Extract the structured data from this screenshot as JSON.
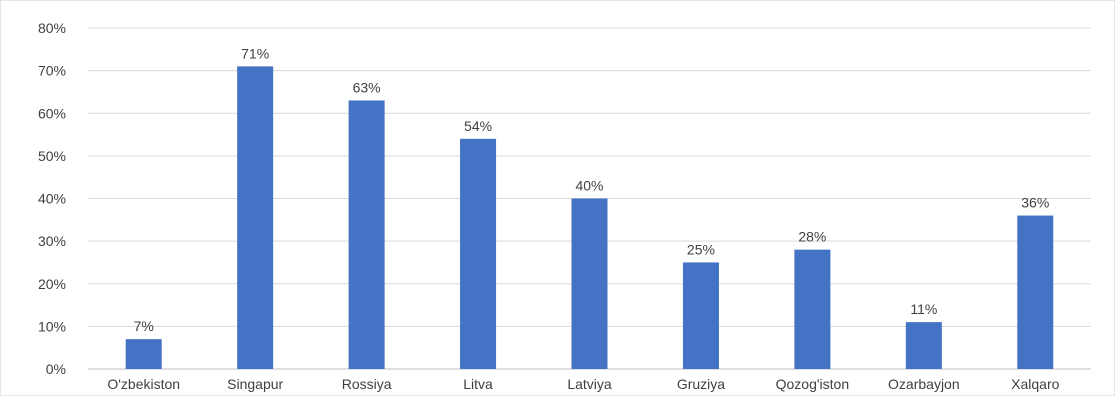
{
  "chart_data": {
    "type": "bar",
    "categories": [
      "O'zbekiston",
      "Singapur",
      "Rossiya",
      "Litva",
      "Latviya",
      "Gruziya",
      "Qozog'iston",
      "Ozarbayjon",
      "Xalqaro"
    ],
    "values": [
      7,
      71,
      63,
      54,
      40,
      25,
      28,
      11,
      36
    ],
    "data_labels": [
      "7%",
      "71%",
      "63%",
      "54%",
      "40%",
      "25%",
      "28%",
      "11%",
      "36%"
    ],
    "title": "",
    "xlabel": "",
    "ylabel": "",
    "ylim": [
      0,
      80
    ],
    "yticks": [
      0,
      10,
      20,
      30,
      40,
      50,
      60,
      70,
      80
    ],
    "ytick_labels": [
      "0%",
      "10%",
      "20%",
      "30%",
      "40%",
      "50%",
      "60%",
      "70%",
      "80%"
    ],
    "grid": true,
    "legend": "none",
    "bar_color": "#4472c4"
  }
}
